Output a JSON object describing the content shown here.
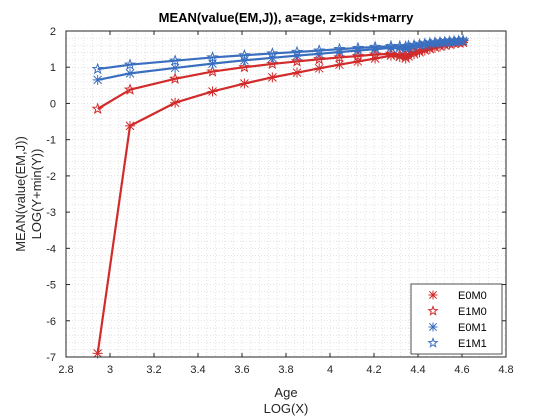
{
  "chart_data": {
    "type": "line",
    "title": "MEAN(value(EM,J)), a=age, z=kids+marry",
    "xlabel": [
      "Age",
      "LOG(X)"
    ],
    "ylabel": [
      "MEAN(value(EM,J))",
      "LOG(Y+min(Y))"
    ],
    "xlim": [
      2.8,
      4.8
    ],
    "ylim": [
      -7,
      2
    ],
    "xticks": [
      "2.8",
      "3",
      "3.2",
      "3.4",
      "3.6",
      "3.8",
      "4",
      "4.2",
      "4.4",
      "4.6",
      "4.8"
    ],
    "yticks": [
      "2",
      "1",
      "0",
      "-1",
      "-2",
      "-3",
      "-4",
      "-5",
      "-6",
      "-7"
    ],
    "grid": true,
    "minor_grid": true,
    "legend_position": "bottom-right",
    "series": [
      {
        "name": "E0M0",
        "color": "#d22b2b",
        "marker": "asterisk",
        "x": [
          2.944,
          3.091,
          3.296,
          3.466,
          3.611,
          3.738,
          3.85,
          3.951,
          4.043,
          4.127,
          4.205,
          4.277,
          4.317,
          4.344,
          4.357,
          4.382,
          4.407,
          4.431,
          4.454,
          4.477,
          4.5,
          4.522,
          4.543,
          4.564,
          4.585,
          4.605
        ],
        "y": [
          -6.9,
          -0.62,
          0.02,
          0.33,
          0.55,
          0.72,
          0.85,
          0.97,
          1.07,
          1.16,
          1.24,
          1.32,
          1.28,
          1.24,
          1.3,
          1.36,
          1.41,
          1.46,
          1.5,
          1.54,
          1.57,
          1.6,
          1.63,
          1.65,
          1.67,
          1.68
        ]
      },
      {
        "name": "E1M0",
        "color": "#d22b2b",
        "marker": "pentagram",
        "x": [
          2.944,
          3.091,
          3.296,
          3.466,
          3.611,
          3.738,
          3.85,
          3.951,
          4.043,
          4.127,
          4.205,
          4.277,
          4.317,
          4.344,
          4.357,
          4.382,
          4.407,
          4.431,
          4.454,
          4.477,
          4.5,
          4.522,
          4.543,
          4.564,
          4.585,
          4.605
        ],
        "y": [
          -0.15,
          0.38,
          0.68,
          0.88,
          1.0,
          1.09,
          1.16,
          1.22,
          1.27,
          1.31,
          1.35,
          1.37,
          1.34,
          1.32,
          1.38,
          1.43,
          1.48,
          1.52,
          1.56,
          1.59,
          1.62,
          1.64,
          1.66,
          1.68,
          1.69,
          1.7
        ]
      },
      {
        "name": "E0M1",
        "color": "#3a6fc0",
        "marker": "asterisk",
        "x": [
          2.944,
          3.091,
          3.296,
          3.466,
          3.611,
          3.738,
          3.85,
          3.951,
          4.043,
          4.127,
          4.205,
          4.277,
          4.317,
          4.344,
          4.357,
          4.382,
          4.407,
          4.431,
          4.454,
          4.477,
          4.5,
          4.522,
          4.543,
          4.564,
          4.585,
          4.605
        ],
        "y": [
          0.65,
          0.83,
          0.98,
          1.1,
          1.19,
          1.26,
          1.32,
          1.37,
          1.42,
          1.46,
          1.5,
          1.53,
          1.52,
          1.51,
          1.54,
          1.57,
          1.6,
          1.62,
          1.64,
          1.66,
          1.68,
          1.69,
          1.7,
          1.71,
          1.72,
          1.73
        ]
      },
      {
        "name": "E1M1",
        "color": "#3a6fc0",
        "marker": "pentagram",
        "x": [
          2.944,
          3.091,
          3.296,
          3.466,
          3.611,
          3.738,
          3.85,
          3.951,
          4.043,
          4.127,
          4.205,
          4.277,
          4.317,
          4.344,
          4.357,
          4.382,
          4.407,
          4.431,
          4.454,
          4.477,
          4.5,
          4.522,
          4.543,
          4.564,
          4.585,
          4.605
        ],
        "y": [
          0.95,
          1.07,
          1.18,
          1.27,
          1.33,
          1.38,
          1.42,
          1.46,
          1.5,
          1.53,
          1.56,
          1.58,
          1.58,
          1.57,
          1.59,
          1.61,
          1.63,
          1.65,
          1.67,
          1.68,
          1.69,
          1.7,
          1.71,
          1.72,
          1.73,
          1.74
        ]
      }
    ]
  }
}
